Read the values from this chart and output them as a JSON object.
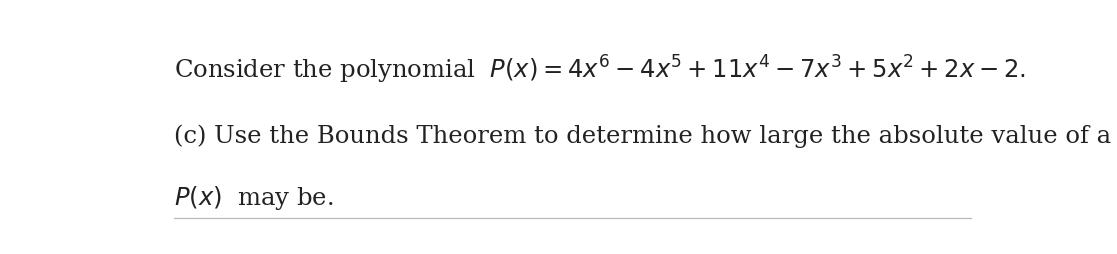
{
  "background_color": "#ffffff",
  "line1": "Consider the polynomial  $P(x) = 4x^6 - 4x^5 + 11x^4 - 7x^3 + 5x^2 + 2x - 2.$",
  "line2": "(c) Use the Bounds Theorem to determine how large the absolute value of a root of",
  "line3": "$P(x)$  may be.",
  "text_color": "#222222",
  "font_size_main": 17.5,
  "separator_color": "#bbbbbb",
  "separator_linewidth": 0.9
}
